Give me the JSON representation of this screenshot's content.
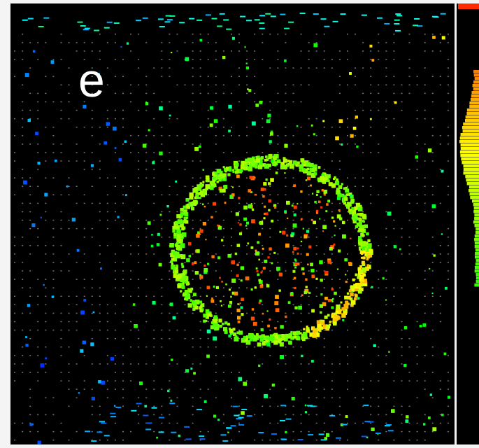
{
  "label": "e"
}
